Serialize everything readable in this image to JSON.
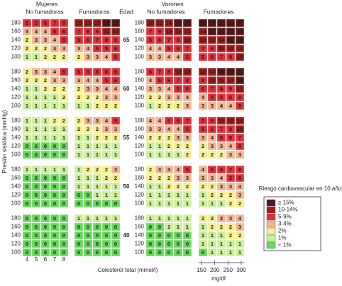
{
  "header": {
    "women": "Mujeres",
    "men": "Varones",
    "women_non_smokers": "No fumadoras",
    "women_smokers": "Fumadoras",
    "men_non_smokers": "No fumadores",
    "men_smokers": "Fumadores",
    "age": "Edad"
  },
  "y_axis_label": "Presión sistólica (mmHg)",
  "x_axis_label": "Colesterol total (mmol/l)",
  "mgdl_label": "mg/dl",
  "mgdl_ticks": [
    150,
    200,
    250,
    300
  ],
  "sbp_levels": [
    180,
    160,
    140,
    120,
    100
  ],
  "chol_levels": [
    4,
    5,
    6,
    7,
    8
  ],
  "blocks": [
    {
      "age": 65,
      "grids": [
        [
          [
            5,
            5,
            6,
            7,
            8
          ],
          [
            3,
            4,
            4,
            5,
            6
          ],
          [
            2,
            3,
            3,
            4,
            5
          ],
          [
            2,
            2,
            2,
            3,
            3
          ],
          [
            1,
            1,
            2,
            2,
            2
          ]
        ],
        [
          [
            10,
            11,
            13,
            16,
            18
          ],
          [
            7,
            8,
            9,
            11,
            13
          ],
          [
            5,
            6,
            7,
            8,
            9
          ],
          [
            3,
            4,
            5,
            5,
            6
          ],
          [
            2,
            3,
            3,
            4,
            5
          ]
        ],
        [
          [
            10,
            12,
            14,
            17,
            20
          ],
          [
            7,
            9,
            10,
            12,
            14
          ],
          [
            5,
            6,
            7,
            8,
            10
          ],
          [
            4,
            4,
            5,
            6,
            7
          ],
          [
            3,
            3,
            4,
            4,
            5
          ]
        ],
        [
          [
            20,
            23,
            27,
            32,
            37
          ],
          [
            14,
            17,
            20,
            23,
            27
          ],
          [
            10,
            12,
            14,
            17,
            19
          ],
          [
            7,
            8,
            10,
            12,
            14
          ],
          [
            5,
            6,
            7,
            8,
            10
          ]
        ]
      ]
    },
    {
      "age": 60,
      "grids": [
        [
          [
            2,
            3,
            3,
            4,
            5
          ],
          [
            2,
            2,
            2,
            3,
            3
          ],
          [
            1,
            1,
            2,
            2,
            2
          ],
          [
            1,
            1,
            1,
            1,
            2
          ],
          [
            1,
            1,
            1,
            1,
            1
          ]
        ],
        [
          [
            5,
            5,
            6,
            8,
            9
          ],
          [
            3,
            4,
            4,
            5,
            6
          ],
          [
            2,
            3,
            3,
            4,
            4
          ],
          [
            2,
            2,
            2,
            3,
            3
          ],
          [
            1,
            1,
            2,
            2,
            2
          ]
        ],
        [
          [
            6,
            7,
            8,
            10,
            12
          ],
          [
            4,
            5,
            6,
            7,
            8
          ],
          [
            3,
            3,
            4,
            5,
            6
          ],
          [
            2,
            2,
            3,
            3,
            4
          ],
          [
            1,
            2,
            2,
            2,
            3
          ]
        ],
        [
          [
            12,
            14,
            16,
            19,
            22
          ],
          [
            8,
            10,
            11,
            13,
            16
          ],
          [
            6,
            7,
            8,
            9,
            11
          ],
          [
            4,
            5,
            5,
            6,
            8
          ],
          [
            3,
            3,
            4,
            4,
            5
          ]
        ]
      ]
    },
    {
      "age": 55,
      "grids": [
        [
          [
            1,
            1,
            1,
            2,
            2
          ],
          [
            1,
            1,
            1,
            1,
            1
          ],
          [
            1,
            1,
            1,
            1,
            1
          ],
          [
            0,
            0,
            0,
            0,
            0
          ],
          [
            0,
            0,
            0,
            0,
            0
          ]
        ],
        [
          [
            2,
            3,
            3,
            4,
            5
          ],
          [
            2,
            2,
            2,
            3,
            3
          ],
          [
            1,
            1,
            2,
            2,
            2
          ],
          [
            1,
            1,
            1,
            1,
            1
          ],
          [
            1,
            1,
            1,
            1,
            1
          ]
        ],
        [
          [
            4,
            4,
            5,
            6,
            7
          ],
          [
            3,
            3,
            4,
            4,
            5
          ],
          [
            2,
            2,
            2,
            3,
            3
          ],
          [
            1,
            1,
            2,
            2,
            2
          ],
          [
            1,
            1,
            1,
            1,
            2
          ]
        ],
        [
          [
            7,
            8,
            10,
            12,
            14
          ],
          [
            5,
            6,
            7,
            8,
            10
          ],
          [
            3,
            4,
            5,
            6,
            7
          ],
          [
            2,
            3,
            3,
            4,
            5
          ],
          [
            2,
            2,
            2,
            3,
            3
          ]
        ]
      ]
    },
    {
      "age": 50,
      "grids": [
        [
          [
            1,
            1,
            1,
            1,
            1
          ],
          [
            0,
            0,
            0,
            0,
            0
          ],
          [
            0,
            0,
            0,
            0,
            0
          ],
          [
            0,
            0,
            0,
            0,
            0
          ],
          [
            0,
            0,
            0,
            0,
            0
          ]
        ],
        [
          [
            1,
            2,
            2,
            2,
            3
          ],
          [
            1,
            1,
            1,
            2,
            2
          ],
          [
            1,
            1,
            1,
            1,
            1
          ],
          [
            0,
            0,
            1,
            1,
            1
          ],
          [
            0,
            0,
            0,
            0,
            0
          ]
        ],
        [
          [
            2,
            3,
            3,
            4,
            5
          ],
          [
            2,
            2,
            2,
            3,
            3
          ],
          [
            1,
            1,
            2,
            2,
            2
          ],
          [
            1,
            1,
            1,
            1,
            1
          ],
          [
            1,
            1,
            1,
            1,
            1
          ]
        ],
        [
          [
            4,
            5,
            6,
            7,
            8
          ],
          [
            3,
            3,
            4,
            5,
            6
          ],
          [
            2,
            2,
            3,
            3,
            4
          ],
          [
            1,
            2,
            2,
            2,
            3
          ],
          [
            1,
            1,
            1,
            2,
            2
          ]
        ]
      ]
    },
    {
      "age": 40,
      "grids": [
        [
          [
            0,
            0,
            0,
            0,
            0
          ],
          [
            0,
            0,
            0,
            0,
            0
          ],
          [
            0,
            0,
            0,
            0,
            0
          ],
          [
            0,
            0,
            0,
            0,
            0
          ],
          [
            0,
            0,
            0,
            0,
            0
          ]
        ],
        [
          [
            1,
            1,
            1,
            1,
            1
          ],
          [
            0,
            0,
            0,
            0,
            0
          ],
          [
            0,
            0,
            0,
            0,
            0
          ],
          [
            0,
            0,
            0,
            0,
            0
          ],
          [
            0,
            0,
            0,
            0,
            0
          ]
        ],
        [
          [
            1,
            1,
            1,
            1,
            1
          ],
          [
            0,
            0,
            1,
            1,
            1
          ],
          [
            0,
            0,
            0,
            0,
            0
          ],
          [
            0,
            0,
            0,
            0,
            0
          ],
          [
            0,
            0,
            0,
            0,
            0
          ]
        ],
        [
          [
            2,
            2,
            3,
            3,
            4
          ],
          [
            1,
            2,
            2,
            2,
            3
          ],
          [
            1,
            1,
            1,
            2,
            2
          ],
          [
            1,
            1,
            1,
            1,
            1
          ],
          [
            0,
            1,
            1,
            1,
            1
          ]
        ]
      ]
    }
  ],
  "legend": {
    "title": "Riesgo cardiovascular en 10 años",
    "items": [
      {
        "label": "≥ 15%",
        "color": "#5a1616"
      },
      {
        "label": "10-14%",
        "color": "#a31d1d"
      },
      {
        "label": "5-9%",
        "color": "#e0303a"
      },
      {
        "label": "3-4%",
        "color": "#f2b493"
      },
      {
        "label": "2%",
        "color": "#f5f08c"
      },
      {
        "label": "1%",
        "color": "#ccef9a"
      },
      {
        "label": "< 1%",
        "color": "#66d85a"
      }
    ]
  }
}
